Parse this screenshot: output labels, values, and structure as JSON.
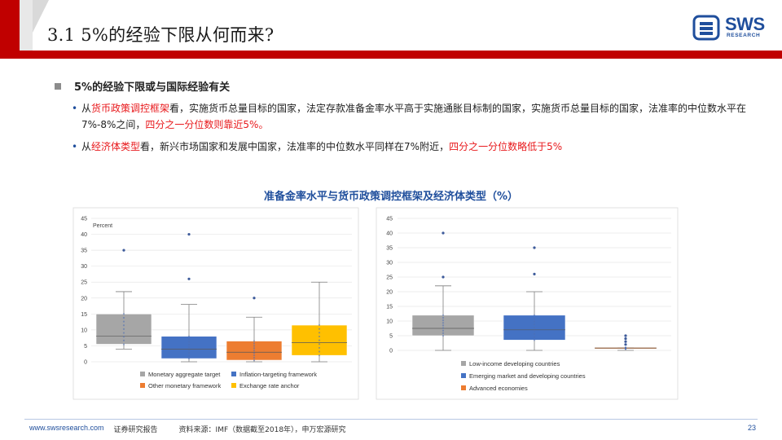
{
  "header": {
    "title": "3.1 5%的经验下限从何而来?",
    "logo_name": "SWS",
    "logo_sub": "RESEARCH",
    "colors": {
      "red": "#c00000",
      "blue": "#1f4e9c"
    }
  },
  "section": {
    "heading": "5%的经验下限或与国际经验有关",
    "bullet1": {
      "p1": "从",
      "p2": "货币政策调控框架",
      "p3": "看，实施货币总量目标的国家，法定存款准备金率水平高于实施通胀目标制的国家，实施货币总量目标的国家，法准率的中位数水平在7%-8%之间，",
      "p4": "四分之一分位数则靠近5%。"
    },
    "bullet2": {
      "p1": "从",
      "p2": "经济体类型",
      "p3": "看，新兴市场国家和发展中国家，法准率的中位数水平同样在7%附近，",
      "p4": "四分之一分位数略低于5%"
    }
  },
  "figure_title": "准备金率水平与货币政策调控框架及经济体类型（%）",
  "chart_data": [
    {
      "type": "box",
      "title": "",
      "ylabel": "Percent",
      "ylim": [
        0,
        45
      ],
      "yticks": [
        "0",
        "5",
        "10",
        "15",
        "20",
        "25",
        "30",
        "35",
        "40",
        "45"
      ],
      "series": [
        {
          "name": "Monetary aggregate target",
          "color": "#a6a6a6",
          "min": 4,
          "q1": 5.5,
          "median": 8,
          "q3": 15,
          "max": 22,
          "outliers": [
            35
          ]
        },
        {
          "name": "Inflation-targeting framework",
          "color": "#4472c4",
          "min": 0,
          "q1": 1,
          "median": 4,
          "q3": 8,
          "max": 18,
          "outliers": [
            26,
            40
          ]
        },
        {
          "name": "Other monetary framework",
          "color": "#ed7d31",
          "min": 0,
          "q1": 0.5,
          "median": 3,
          "q3": 6.5,
          "max": 14,
          "outliers": [
            20
          ]
        },
        {
          "name": "Exchange rate anchor",
          "color": "#ffc000",
          "min": 0,
          "q1": 2,
          "median": 6,
          "q3": 11.5,
          "max": 25,
          "outliers": []
        }
      ]
    },
    {
      "type": "box",
      "title": "",
      "ylabel": "",
      "ylim": [
        0,
        45
      ],
      "yticks": [
        "0",
        "5",
        "10",
        "15",
        "20",
        "25",
        "30",
        "35",
        "40",
        "45"
      ],
      "series": [
        {
          "name": "Low-income developing countries",
          "color": "#a6a6a6",
          "min": 0,
          "q1": 5,
          "median": 7.5,
          "q3": 12,
          "max": 22,
          "outliers": [
            25,
            40
          ]
        },
        {
          "name": "Emerging market and developing countries",
          "color": "#4472c4",
          "min": 0,
          "q1": 3.5,
          "median": 7,
          "q3": 12,
          "max": 20,
          "outliers": [
            26,
            35
          ]
        },
        {
          "name": "Advanced economies",
          "color": "#ed7d31",
          "min": 0,
          "q1": 0.5,
          "median": 0.8,
          "q3": 1,
          "max": 1,
          "outliers": [
            2,
            3,
            4,
            5
          ]
        }
      ]
    }
  ],
  "footer": {
    "url": "www.swsresearch.com",
    "label": "证券研究报告",
    "source": "资料来源：IMF（数据截至2018年），申万宏源研究",
    "page": "23"
  }
}
